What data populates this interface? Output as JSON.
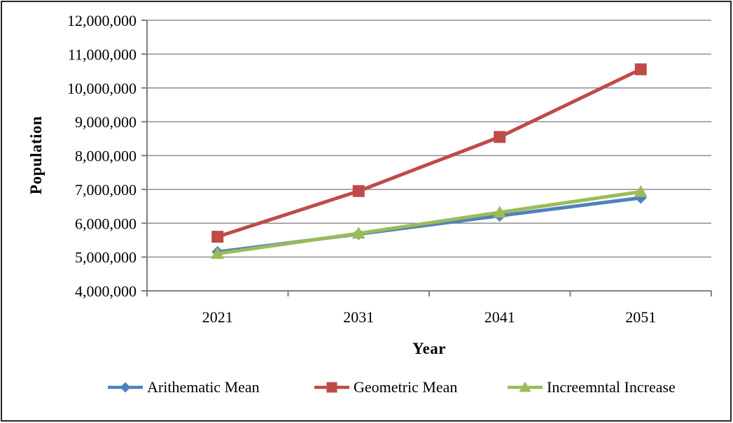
{
  "chart_data": {
    "type": "line",
    "title": "",
    "xlabel": "Year",
    "ylabel": "Population",
    "categories": [
      "2021",
      "2031",
      "2041",
      "2051"
    ],
    "series": [
      {
        "name": "Arithematic Mean",
        "color": "#4F81BD",
        "marker": "diamond",
        "values": [
          5150000,
          5680000,
          6220000,
          6750000
        ]
      },
      {
        "name": "Geometric Mean",
        "color": "#BE4B48",
        "marker": "square",
        "values": [
          5600000,
          6950000,
          8550000,
          10550000
        ]
      },
      {
        "name": "Increemntal Increase",
        "color": "#9BBB59",
        "marker": "triangle",
        "values": [
          5100000,
          5700000,
          6320000,
          6930000
        ]
      }
    ],
    "ylim": [
      4000000,
      12000000
    ],
    "ytick_step": 1000000,
    "ytick_labels": [
      "4,000,000",
      "5,000,000",
      "6,000,000",
      "7,000,000",
      "8,000,000",
      "9,000,000",
      "10,000,000",
      "11,000,000",
      "12,000,000"
    ],
    "grid": "horizontal-gridlines-on",
    "legend_position": "bottom"
  },
  "colors": {
    "gridline": "#8E8E8E",
    "axis": "#7F7F7F",
    "text": "#000000",
    "frame_border": "#262626",
    "background": "#FFFFFF"
  }
}
